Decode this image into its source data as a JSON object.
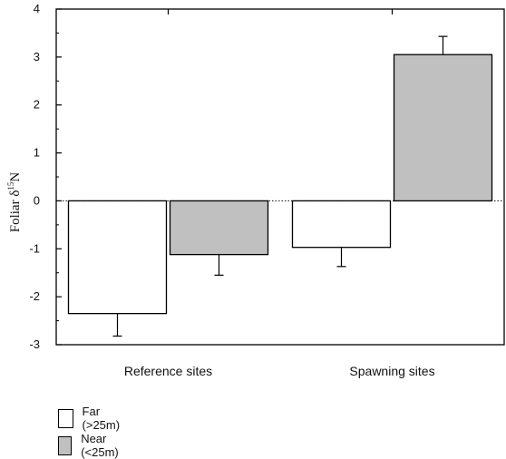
{
  "chart_data": {
    "type": "bar",
    "categories": [
      "Reference sites",
      "Spawning sites"
    ],
    "series": [
      {
        "name": "Far (>25m)",
        "color": "#ffffff",
        "values": [
          -2.35,
          -0.97
        ],
        "errors": [
          0.47,
          0.4
        ]
      },
      {
        "name": "Near (<25m)",
        "color": "#c0c0c0",
        "values": [
          -1.12,
          3.05
        ],
        "errors": [
          0.43,
          0.38
        ]
      }
    ],
    "ylabel": {
      "prefix": "Foliar δ",
      "sup": "15",
      "suffix": "N"
    },
    "ylim": [
      -3,
      4
    ],
    "yticks": [
      -3,
      -2,
      -1,
      0,
      1,
      2,
      3,
      4
    ],
    "ytick_labels": [
      "-3",
      "-2",
      "-1",
      "0",
      "1",
      "2",
      "3",
      "4"
    ],
    "zero_line": "dotted",
    "grid": false,
    "legend_position": "bottom-left"
  }
}
